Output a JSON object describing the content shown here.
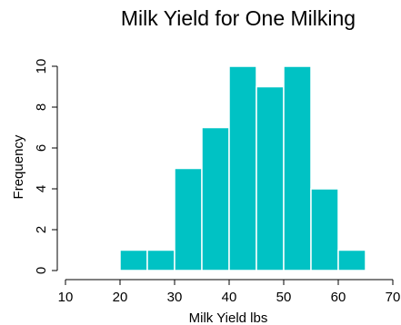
{
  "chart_data": {
    "type": "bar",
    "subtype": "histogram",
    "title": "Milk Yield for One Milking",
    "xlabel": "Milk Yield lbs",
    "ylabel": "Frequency",
    "bins": [
      {
        "start": 20,
        "end": 25,
        "count": 1
      },
      {
        "start": 25,
        "end": 30,
        "count": 1
      },
      {
        "start": 30,
        "end": 35,
        "count": 5
      },
      {
        "start": 35,
        "end": 40,
        "count": 7
      },
      {
        "start": 40,
        "end": 45,
        "count": 10
      },
      {
        "start": 45,
        "end": 50,
        "count": 9
      },
      {
        "start": 50,
        "end": 55,
        "count": 10
      },
      {
        "start": 55,
        "end": 60,
        "count": 4
      },
      {
        "start": 60,
        "end": 65,
        "count": 1
      }
    ],
    "xlim": [
      10,
      70
    ],
    "ylim": [
      0,
      10
    ],
    "xticks": [
      10,
      20,
      30,
      40,
      50,
      60,
      70
    ],
    "yticks": [
      0,
      2,
      4,
      6,
      8,
      10
    ],
    "grid": false,
    "bar_color": "#00c2c4",
    "bar_edge_color": "#ffffff"
  }
}
